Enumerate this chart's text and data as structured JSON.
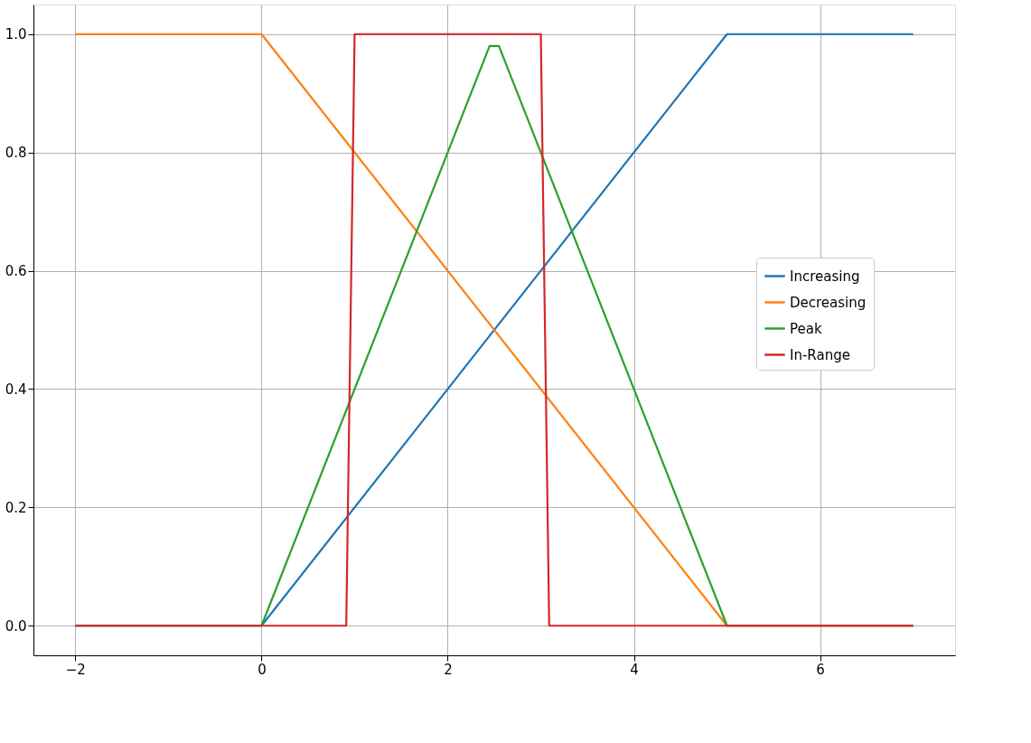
{
  "chart_data": {
    "type": "line",
    "xlim": [
      -2.45,
      7.45
    ],
    "ylim": [
      -0.05,
      1.05
    ],
    "xticks": [
      {
        "value": -2,
        "label": "−2"
      },
      0,
      2,
      4,
      6
    ],
    "yticks": [
      {
        "value": 0,
        "label": "0.0"
      },
      {
        "value": 0.2,
        "label": "0.2"
      },
      {
        "value": 0.4,
        "label": "0.4"
      },
      {
        "value": 0.6,
        "label": "0.6"
      },
      {
        "value": 0.8,
        "label": "0.8"
      },
      {
        "value": 1,
        "label": "1.0"
      }
    ],
    "grid": true,
    "legend": "right",
    "line_style": "solid",
    "series": [
      {
        "name": "Increasing",
        "color": "#1f77b4",
        "x": [
          -2,
          0,
          5,
          7
        ],
        "values": [
          0,
          0,
          1,
          1
        ]
      },
      {
        "name": "Decreasing",
        "color": "#ff7f0e",
        "x": [
          -2,
          0,
          5,
          7
        ],
        "values": [
          1,
          1,
          0,
          0
        ]
      },
      {
        "name": "Peak",
        "color": "#2ca02c",
        "x": [
          -2,
          0,
          2.45,
          2.55,
          5,
          7
        ],
        "values": [
          0,
          0,
          0.98,
          0.98,
          0,
          0
        ]
      },
      {
        "name": "In-Range",
        "color": "#d62728",
        "x": [
          -2,
          0.91,
          1.0,
          3.0,
          3.09,
          7
        ],
        "values": [
          0,
          0,
          1,
          1,
          0,
          0
        ]
      }
    ]
  }
}
